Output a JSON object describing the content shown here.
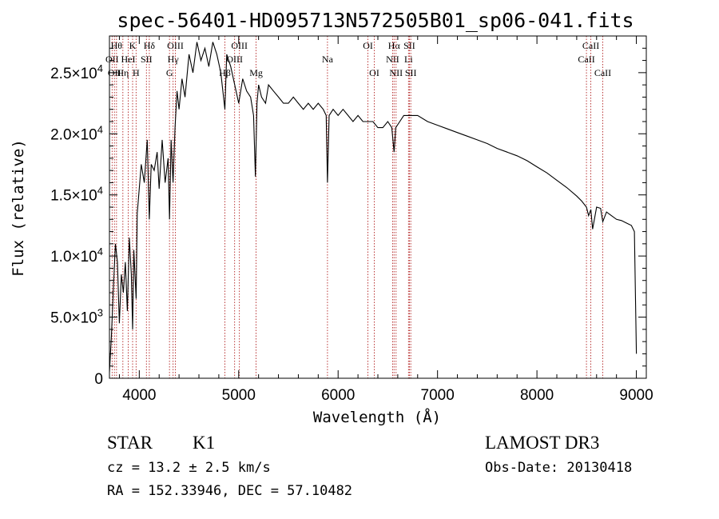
{
  "title": "spec-56401-HD095713N572505B01_sp06-041.fits",
  "info": {
    "class_label": "STAR",
    "subclass": "K1",
    "survey": "LAMOST DR3",
    "cz": "cz = 13.2 ± 2.5 km/s",
    "obs_date": "Obs-Date: 20130418",
    "radec": "RA = 152.33946, DEC =  57.10482"
  },
  "chart_data": {
    "type": "line",
    "title": "spec-56401-HD095713N572505B01_sp06-041.fits",
    "xlabel": "Wavelength (Å)",
    "ylabel": "Flux (relative)",
    "xlim": [
      3700,
      9100
    ],
    "ylim": [
      0,
      28000
    ],
    "xticks": [
      {
        "value": 4000,
        "label": "4000"
      },
      {
        "value": 5000,
        "label": "5000"
      },
      {
        "value": 6000,
        "label": "6000"
      },
      {
        "value": 7000,
        "label": "7000"
      },
      {
        "value": 8000,
        "label": "8000"
      },
      {
        "value": 9000,
        "label": "9000"
      }
    ],
    "yticks": [
      {
        "value": 0,
        "mant": "0",
        "exp": ""
      },
      {
        "value": 5000,
        "mant": "5.0×10",
        "exp": "3"
      },
      {
        "value": 10000,
        "mant": "1.0×10",
        "exp": "4"
      },
      {
        "value": 15000,
        "mant": "1.5×10",
        "exp": "4"
      },
      {
        "value": 20000,
        "mant": "2.0×10",
        "exp": "4"
      },
      {
        "value": 25000,
        "mant": "2.5×10",
        "exp": "4"
      }
    ],
    "grid": false,
    "spectrum_color": "#000000",
    "line_color": "#b22222",
    "spectrum": {
      "x": [
        3700,
        3720,
        3740,
        3760,
        3780,
        3800,
        3820,
        3840,
        3860,
        3880,
        3900,
        3920,
        3933,
        3945,
        3968,
        3980,
        4000,
        4020,
        4050,
        4080,
        4101,
        4120,
        4150,
        4180,
        4200,
        4230,
        4260,
        4290,
        4304,
        4320,
        4340,
        4360,
        4380,
        4400,
        4430,
        4460,
        4500,
        4540,
        4580,
        4620,
        4660,
        4700,
        4740,
        4780,
        4820,
        4861,
        4880,
        4920,
        4960,
        5000,
        5040,
        5080,
        5120,
        5150,
        5168,
        5184,
        5200,
        5230,
        5270,
        5300,
        5350,
        5400,
        5450,
        5500,
        5550,
        5600,
        5650,
        5700,
        5750,
        5800,
        5850,
        5880,
        5893,
        5910,
        5950,
        6000,
        6050,
        6100,
        6150,
        6200,
        6250,
        6300,
        6350,
        6400,
        6450,
        6500,
        6540,
        6563,
        6580,
        6620,
        6660,
        6700,
        6750,
        6800,
        6900,
        7000,
        7100,
        7200,
        7300,
        7400,
        7500,
        7600,
        7700,
        7800,
        7900,
        8000,
        8100,
        8200,
        8300,
        8400,
        8450,
        8498,
        8520,
        8542,
        8560,
        8600,
        8640,
        8662,
        8700,
        8750,
        8800,
        8850,
        8900,
        8950,
        8980,
        9000
      ],
      "y": [
        500,
        3500,
        7500,
        11000,
        9500,
        4500,
        8500,
        7000,
        9500,
        5500,
        11500,
        8500,
        4000,
        10500,
        6500,
        13500,
        15500,
        17500,
        16000,
        19500,
        13000,
        17500,
        17000,
        18500,
        15500,
        19500,
        16000,
        18000,
        13000,
        19500,
        16000,
        20500,
        23500,
        22000,
        24500,
        23000,
        26500,
        25000,
        27500,
        26000,
        27000,
        25500,
        27500,
        26500,
        25000,
        22000,
        26500,
        25500,
        24000,
        22500,
        24500,
        23500,
        23000,
        21500,
        16500,
        22500,
        24000,
        23000,
        22500,
        24000,
        23500,
        23000,
        22500,
        22500,
        23000,
        22500,
        22000,
        22500,
        22000,
        22500,
        22000,
        21500,
        16000,
        21500,
        22000,
        21500,
        22000,
        21500,
        21000,
        21500,
        21000,
        21000,
        21000,
        20500,
        20500,
        21000,
        20500,
        18500,
        20500,
        21000,
        21500,
        21500,
        21500,
        21500,
        21000,
        20700,
        20400,
        20100,
        19800,
        19500,
        19200,
        18800,
        18500,
        18200,
        17800,
        17300,
        16800,
        16200,
        15600,
        14900,
        14500,
        14000,
        13300,
        13800,
        12200,
        14000,
        13900,
        12800,
        13600,
        13300,
        13000,
        12900,
        12700,
        12500,
        12000,
        2000
      ]
    },
    "lines": [
      {
        "x": 3727,
        "label": "OII",
        "row": 2
      },
      {
        "x": 3750,
        "label": "OII",
        "row": 3
      },
      {
        "x": 3771,
        "label": "Hθ",
        "row": 1
      },
      {
        "x": 3835,
        "label": "Hη",
        "row": 3
      },
      {
        "x": 3889,
        "label": "HeI",
        "row": 2
      },
      {
        "x": 3933,
        "label": "K",
        "row": 1
      },
      {
        "x": 3968,
        "label": "H",
        "row": 3
      },
      {
        "x": 4072,
        "label": "SII",
        "row": 2
      },
      {
        "x": 4101,
        "label": "Hδ",
        "row": 1
      },
      {
        "x": 4304,
        "label": "G",
        "row": 3
      },
      {
        "x": 4340,
        "label": "Hγ",
        "row": 2
      },
      {
        "x": 4363,
        "label": "OIII",
        "row": 1
      },
      {
        "x": 4861,
        "label": "Hβ",
        "row": 3
      },
      {
        "x": 4959,
        "label": "OIII",
        "row": 2
      },
      {
        "x": 5007,
        "label": "OIII",
        "row": 1
      },
      {
        "x": 5175,
        "label": "Mg",
        "row": 3
      },
      {
        "x": 5893,
        "label": "Na",
        "row": 2
      },
      {
        "x": 6300,
        "label": "OI",
        "row": 1
      },
      {
        "x": 6364,
        "label": "OI",
        "row": 3
      },
      {
        "x": 6548,
        "label": "NII",
        "row": 2
      },
      {
        "x": 6563,
        "label": "Hα",
        "row": 1
      },
      {
        "x": 6583,
        "label": "NII",
        "row": 3
      },
      {
        "x": 6708,
        "label": "Li",
        "row": 2
      },
      {
        "x": 6717,
        "label": "SII",
        "row": 1
      },
      {
        "x": 6731,
        "label": "SII",
        "row": 3
      },
      {
        "x": 8498,
        "label": "CaII",
        "row": 2
      },
      {
        "x": 8542,
        "label": "CaII",
        "row": 1
      },
      {
        "x": 8662,
        "label": "CaII",
        "row": 3
      }
    ]
  }
}
